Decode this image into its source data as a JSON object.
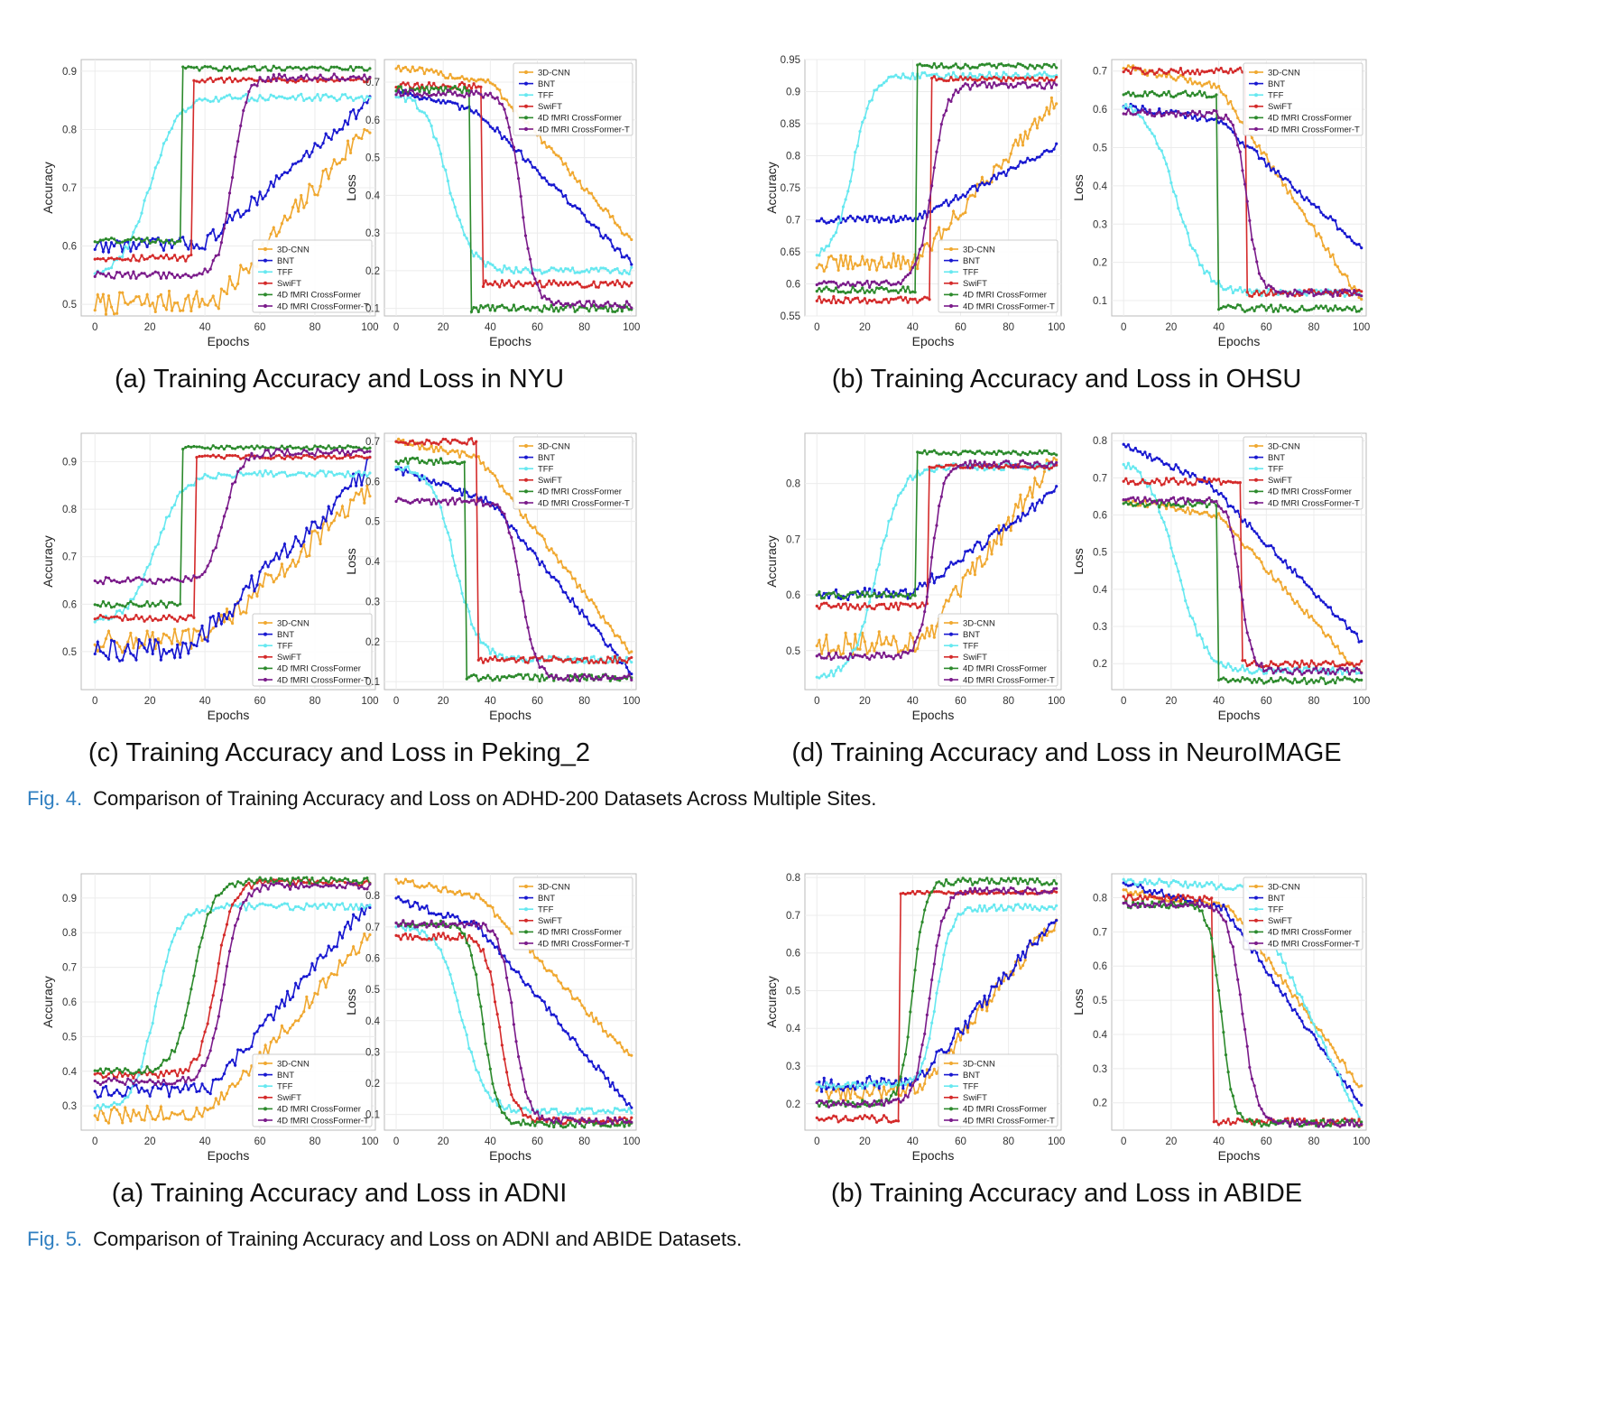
{
  "legend_labels": [
    "3D-CNN",
    "BNT",
    "TFF",
    "SwiFT",
    "4D fMRI CrossFormer",
    "4D fMRI CrossFormer-T"
  ],
  "series_colors": [
    "#f0a830",
    "#1818d0",
    "#66e8f0",
    "#d42a2a",
    "#2c8a2c",
    "#7a1a8a"
  ],
  "subcaptions": [
    {
      "id": "a1",
      "text": "(a) Training Accuracy and Loss in NYU"
    },
    {
      "id": "b1",
      "text": "(b) Training Accuracy and Loss in OHSU"
    },
    {
      "id": "c1",
      "text": "(c) Training Accuracy and Loss in Peking_2"
    },
    {
      "id": "d1",
      "text": "(d) Training Accuracy and Loss in NeuroIMAGE"
    },
    {
      "id": "a2",
      "text": "(a) Training Accuracy and Loss in ADNI"
    },
    {
      "id": "b2",
      "text": "(b) Training Accuracy and Loss in ABIDE"
    }
  ],
  "figure_captions": [
    {
      "num": "Fig. 4.",
      "text": "Comparison of Training Accuracy and Loss on ADHD-200 Datasets Across Multiple Sites."
    },
    {
      "num": "Fig. 5.",
      "text": "Comparison of Training Accuracy and Loss on ADNI and ABIDE Datasets."
    }
  ],
  "chart_data": [
    {
      "id": "nyu-acc",
      "type": "line",
      "xlabel": "Epochs",
      "ylabel": "Accuracy",
      "xlim": [
        -5,
        102
      ],
      "ylim": [
        0.48,
        0.92
      ],
      "xticks": [
        0,
        20,
        40,
        60,
        80,
        100
      ],
      "yticks": [
        0.5,
        0.6,
        0.7,
        0.8,
        0.9
      ],
      "legend": "bottom-right",
      "series": [
        {
          "name": "3D-CNN",
          "shape": "linear",
          "start": 0.5,
          "end": 0.81,
          "t": 45,
          "noise": 0.02
        },
        {
          "name": "BNT",
          "shape": "linear",
          "start": 0.6,
          "end": 0.85,
          "t": 40,
          "noise": 0.012
        },
        {
          "name": "TFF",
          "shape": "sigmoid",
          "start": 0.55,
          "end": 0.855,
          "t": 20,
          "w": 5
        },
        {
          "name": "SwiFT",
          "shape": "step",
          "start": 0.58,
          "end": 0.885,
          "t": 36
        },
        {
          "name": "4D fMRI CrossFormer",
          "shape": "step",
          "start": 0.61,
          "end": 0.905,
          "t": 32
        },
        {
          "name": "4D fMRI CrossFormer-T",
          "shape": "sigmoid",
          "start": 0.55,
          "end": 0.89,
          "t": 50,
          "w": 2.5
        }
      ]
    },
    {
      "id": "nyu-loss",
      "type": "line",
      "xlabel": "Epochs",
      "ylabel": "Loss",
      "xlim": [
        -5,
        102
      ],
      "ylim": [
        0.08,
        0.76
      ],
      "xticks": [
        0,
        20,
        40,
        60,
        80,
        100
      ],
      "yticks": [
        0.1,
        0.2,
        0.3,
        0.4,
        0.5,
        0.6,
        0.7
      ],
      "legend": "top-right",
      "series": [
        {
          "name": "3D-CNN",
          "shape": "plateau",
          "start": 0.74,
          "mid": 0.7,
          "end": 0.28,
          "t": 40
        },
        {
          "name": "BNT",
          "shape": "plateau",
          "start": 0.68,
          "mid": 0.62,
          "end": 0.22,
          "t": 35
        },
        {
          "name": "TFF",
          "shape": "sigmoid",
          "start": 0.67,
          "end": 0.2,
          "t": 22,
          "w": 5
        },
        {
          "name": "SwiFT",
          "shape": "step",
          "start": 0.69,
          "end": 0.165,
          "t": 37
        },
        {
          "name": "4D fMRI CrossFormer",
          "shape": "step",
          "start": 0.68,
          "end": 0.1,
          "t": 32
        },
        {
          "name": "4D fMRI CrossFormer-T",
          "shape": "sigmoid",
          "start": 0.67,
          "end": 0.11,
          "t": 53,
          "w": 3
        }
      ]
    },
    {
      "id": "ohsu-acc",
      "type": "line",
      "xlabel": "Epochs",
      "ylabel": "Accuracy",
      "xlim": [
        -5,
        102
      ],
      "ylim": [
        0.55,
        0.95
      ],
      "xticks": [
        0,
        20,
        40,
        60,
        80,
        100
      ],
      "yticks": [
        0.55,
        0.6,
        0.65,
        0.7,
        0.75,
        0.8,
        0.85,
        0.9,
        0.95
      ],
      "legend": "bottom-right",
      "series": [
        {
          "name": "3D-CNN",
          "shape": "linear",
          "start": 0.63,
          "end": 0.89,
          "t": 42,
          "noise": 0.015
        },
        {
          "name": "BNT",
          "shape": "linear",
          "start": 0.7,
          "end": 0.815,
          "t": 42,
          "noise": 0.006
        },
        {
          "name": "TFF",
          "shape": "sigmoid",
          "start": 0.64,
          "end": 0.925,
          "t": 15,
          "w": 4
        },
        {
          "name": "SwiFT",
          "shape": "step",
          "start": 0.575,
          "end": 0.92,
          "t": 48
        },
        {
          "name": "4D fMRI CrossFormer",
          "shape": "step",
          "start": 0.59,
          "end": 0.94,
          "t": 42
        },
        {
          "name": "4D fMRI CrossFormer-T",
          "shape": "sigmoid",
          "start": 0.6,
          "end": 0.91,
          "t": 48,
          "w": 3
        }
      ]
    },
    {
      "id": "ohsu-loss",
      "type": "line",
      "xlabel": "Epochs",
      "ylabel": "Loss",
      "xlim": [
        -5,
        102
      ],
      "ylim": [
        0.06,
        0.73
      ],
      "xticks": [
        0,
        20,
        40,
        60,
        80,
        100
      ],
      "yticks": [
        0.1,
        0.2,
        0.3,
        0.4,
        0.5,
        0.6,
        0.7
      ],
      "legend": "top-right",
      "series": [
        {
          "name": "3D-CNN",
          "shape": "plateau",
          "start": 0.71,
          "mid": 0.66,
          "end": 0.1,
          "t": 40
        },
        {
          "name": "BNT",
          "shape": "plateau",
          "start": 0.61,
          "mid": 0.57,
          "end": 0.24,
          "t": 40
        },
        {
          "name": "TFF",
          "shape": "sigmoid",
          "start": 0.62,
          "end": 0.12,
          "t": 22,
          "w": 6
        },
        {
          "name": "SwiFT",
          "shape": "step",
          "start": 0.7,
          "end": 0.12,
          "t": 52
        },
        {
          "name": "4D fMRI CrossFormer",
          "shape": "step",
          "start": 0.64,
          "end": 0.08,
          "t": 40
        },
        {
          "name": "4D fMRI CrossFormer-T",
          "shape": "sigmoid",
          "start": 0.59,
          "end": 0.12,
          "t": 52,
          "w": 2.5
        }
      ]
    },
    {
      "id": "peking-acc",
      "type": "line",
      "xlabel": "Epochs",
      "ylabel": "Accuracy",
      "xlim": [
        -5,
        102
      ],
      "ylim": [
        0.42,
        0.96
      ],
      "xticks": [
        0,
        20,
        40,
        60,
        80,
        100
      ],
      "yticks": [
        0.5,
        0.6,
        0.7,
        0.8,
        0.9
      ],
      "legend": "bottom-right",
      "series": [
        {
          "name": "3D-CNN",
          "shape": "linear",
          "start": 0.52,
          "end": 0.84,
          "t": 40,
          "noise": 0.02
        },
        {
          "name": "BNT",
          "shape": "linear",
          "start": 0.5,
          "end": 0.89,
          "t": 35,
          "noise": 0.02
        },
        {
          "name": "TFF",
          "shape": "sigmoid",
          "start": 0.56,
          "end": 0.875,
          "t": 22,
          "w": 5
        },
        {
          "name": "SwiFT",
          "shape": "step",
          "start": 0.57,
          "end": 0.91,
          "t": 37
        },
        {
          "name": "4D fMRI CrossFormer",
          "shape": "step",
          "start": 0.6,
          "end": 0.93,
          "t": 32
        },
        {
          "name": "4D fMRI CrossFormer-T",
          "shape": "sigmoid",
          "start": 0.65,
          "end": 0.92,
          "t": 47,
          "w": 3
        }
      ]
    },
    {
      "id": "peking-loss",
      "type": "line",
      "xlabel": "Epochs",
      "ylabel": "Loss",
      "xlim": [
        -5,
        102
      ],
      "ylim": [
        0.08,
        0.72
      ],
      "xticks": [
        0,
        20,
        40,
        60,
        80,
        100
      ],
      "yticks": [
        0.1,
        0.2,
        0.3,
        0.4,
        0.5,
        0.6,
        0.7
      ],
      "legend": "top-right",
      "series": [
        {
          "name": "3D-CNN",
          "shape": "plateau",
          "start": 0.7,
          "mid": 0.66,
          "end": 0.17,
          "t": 35
        },
        {
          "name": "BNT",
          "shape": "plateau",
          "start": 0.63,
          "mid": 0.55,
          "end": 0.12,
          "t": 40
        },
        {
          "name": "TFF",
          "shape": "sigmoid",
          "start": 0.64,
          "end": 0.155,
          "t": 25,
          "w": 5
        },
        {
          "name": "SwiFT",
          "shape": "step",
          "start": 0.7,
          "end": 0.155,
          "t": 35
        },
        {
          "name": "4D fMRI CrossFormer",
          "shape": "step",
          "start": 0.65,
          "end": 0.11,
          "t": 30
        },
        {
          "name": "4D fMRI CrossFormer-T",
          "shape": "sigmoid",
          "start": 0.55,
          "end": 0.11,
          "t": 53,
          "w": 3
        }
      ]
    },
    {
      "id": "neuro-acc",
      "type": "line",
      "xlabel": "Epochs",
      "ylabel": "Accuracy",
      "xlim": [
        -5,
        102
      ],
      "ylim": [
        0.43,
        0.89
      ],
      "xticks": [
        0,
        20,
        40,
        60,
        80,
        100
      ],
      "yticks": [
        0.5,
        0.6,
        0.7,
        0.8
      ],
      "legend": "bottom-right",
      "series": [
        {
          "name": "3D-CNN",
          "shape": "linear",
          "start": 0.51,
          "end": 0.85,
          "t": 45,
          "noise": 0.02
        },
        {
          "name": "BNT",
          "shape": "linear",
          "start": 0.6,
          "end": 0.785,
          "t": 40,
          "noise": 0.01
        },
        {
          "name": "TFF",
          "shape": "sigmoid",
          "start": 0.45,
          "end": 0.83,
          "t": 25,
          "w": 5
        },
        {
          "name": "SwiFT",
          "shape": "step",
          "start": 0.58,
          "end": 0.83,
          "t": 47
        },
        {
          "name": "4D fMRI CrossFormer",
          "shape": "step",
          "start": 0.6,
          "end": 0.855,
          "t": 42
        },
        {
          "name": "4D fMRI CrossFormer-T",
          "shape": "sigmoid",
          "start": 0.49,
          "end": 0.835,
          "t": 48,
          "w": 2.5
        }
      ]
    },
    {
      "id": "neuro-loss",
      "type": "line",
      "xlabel": "Epochs",
      "ylabel": "Loss",
      "xlim": [
        -5,
        102
      ],
      "ylim": [
        0.13,
        0.82
      ],
      "xticks": [
        0,
        20,
        40,
        60,
        80,
        100
      ],
      "yticks": [
        0.2,
        0.3,
        0.4,
        0.5,
        0.6,
        0.7,
        0.8
      ],
      "legend": "top-right",
      "series": [
        {
          "name": "3D-CNN",
          "shape": "plateau",
          "start": 0.64,
          "mid": 0.6,
          "end": 0.17,
          "t": 40
        },
        {
          "name": "BNT",
          "shape": "plateau",
          "start": 0.79,
          "mid": 0.69,
          "end": 0.26,
          "t": 35
        },
        {
          "name": "TFF",
          "shape": "sigmoid",
          "start": 0.75,
          "end": 0.18,
          "t": 22,
          "w": 6
        },
        {
          "name": "SwiFT",
          "shape": "step",
          "start": 0.69,
          "end": 0.2,
          "t": 50
        },
        {
          "name": "4D fMRI CrossFormer",
          "shape": "step",
          "start": 0.63,
          "end": 0.155,
          "t": 40
        },
        {
          "name": "4D fMRI CrossFormer-T",
          "shape": "sigmoid",
          "start": 0.64,
          "end": 0.18,
          "t": 49,
          "w": 2.5
        }
      ]
    },
    {
      "id": "adni-acc",
      "type": "line",
      "xlabel": "Epochs",
      "ylabel": "Accuracy",
      "xlim": [
        -5,
        102
      ],
      "ylim": [
        0.23,
        0.97
      ],
      "xticks": [
        0,
        20,
        40,
        60,
        80,
        100
      ],
      "yticks": [
        0.3,
        0.4,
        0.5,
        0.6,
        0.7,
        0.8,
        0.9
      ],
      "legend": "bottom-right",
      "series": [
        {
          "name": "3D-CNN",
          "shape": "linear",
          "start": 0.27,
          "end": 0.8,
          "t": 42,
          "noise": 0.015
        },
        {
          "name": "BNT",
          "shape": "linear",
          "start": 0.34,
          "end": 0.89,
          "t": 42,
          "noise": 0.012
        },
        {
          "name": "TFF",
          "shape": "sigmoid",
          "start": 0.29,
          "end": 0.875,
          "t": 22,
          "w": 4
        },
        {
          "name": "SwiFT",
          "shape": "sigmoid",
          "start": 0.39,
          "end": 0.945,
          "t": 44,
          "w": 3
        },
        {
          "name": "4D fMRI CrossFormer",
          "shape": "sigmoid",
          "start": 0.4,
          "end": 0.95,
          "t": 36,
          "w": 3.5
        },
        {
          "name": "4D fMRI CrossFormer-T",
          "shape": "sigmoid",
          "start": 0.37,
          "end": 0.935,
          "t": 47,
          "w": 3
        }
      ]
    },
    {
      "id": "adni-loss",
      "type": "line",
      "xlabel": "Epochs",
      "ylabel": "Loss",
      "xlim": [
        -5,
        102
      ],
      "ylim": [
        0.05,
        0.87
      ],
      "xticks": [
        0,
        20,
        40,
        60,
        80,
        100
      ],
      "yticks": [
        0.1,
        0.2,
        0.3,
        0.4,
        0.5,
        0.6,
        0.7,
        0.8
      ],
      "legend": "top-right",
      "series": [
        {
          "name": "3D-CNN",
          "shape": "plateau",
          "start": 0.85,
          "mid": 0.8,
          "end": 0.28,
          "t": 35
        },
        {
          "name": "BNT",
          "shape": "plateau",
          "start": 0.79,
          "mid": 0.7,
          "end": 0.12,
          "t": 35
        },
        {
          "name": "TFF",
          "shape": "sigmoid",
          "start": 0.7,
          "end": 0.11,
          "t": 28,
          "w": 5
        },
        {
          "name": "SwiFT",
          "shape": "sigmoid",
          "start": 0.67,
          "end": 0.08,
          "t": 44,
          "w": 3
        },
        {
          "name": "4D fMRI CrossFormer",
          "shape": "sigmoid",
          "start": 0.71,
          "end": 0.07,
          "t": 37,
          "w": 3
        },
        {
          "name": "4D fMRI CrossFormer-T",
          "shape": "sigmoid",
          "start": 0.71,
          "end": 0.08,
          "t": 50,
          "w": 3
        }
      ]
    },
    {
      "id": "abide-acc",
      "type": "line",
      "xlabel": "Epochs",
      "ylabel": "Accuracy",
      "xlim": [
        -5,
        102
      ],
      "ylim": [
        0.13,
        0.81
      ],
      "xticks": [
        0,
        20,
        40,
        60,
        80,
        100
      ],
      "yticks": [
        0.2,
        0.3,
        0.4,
        0.5,
        0.6,
        0.7,
        0.8
      ],
      "legend": "bottom-right",
      "series": [
        {
          "name": "3D-CNN",
          "shape": "linear",
          "start": 0.23,
          "end": 0.69,
          "t": 42,
          "noise": 0.015
        },
        {
          "name": "BNT",
          "shape": "linear",
          "start": 0.25,
          "end": 0.7,
          "t": 42,
          "noise": 0.012
        },
        {
          "name": "TFF",
          "shape": "sigmoid",
          "start": 0.25,
          "end": 0.72,
          "t": 50,
          "w": 3
        },
        {
          "name": "SwiFT",
          "shape": "step",
          "start": 0.16,
          "end": 0.76,
          "t": 35
        },
        {
          "name": "4D fMRI CrossFormer",
          "shape": "sigmoid",
          "start": 0.2,
          "end": 0.79,
          "t": 40,
          "w": 2.5
        },
        {
          "name": "4D fMRI CrossFormer-T",
          "shape": "sigmoid",
          "start": 0.2,
          "end": 0.765,
          "t": 47,
          "w": 3
        }
      ]
    },
    {
      "id": "abide-loss",
      "type": "line",
      "xlabel": "Epochs",
      "ylabel": "Loss",
      "xlim": [
        -5,
        102
      ],
      "ylim": [
        0.12,
        0.87
      ],
      "xticks": [
        0,
        20,
        40,
        60,
        80,
        100
      ],
      "yticks": [
        0.2,
        0.3,
        0.4,
        0.5,
        0.6,
        0.7,
        0.8
      ],
      "legend": "top-right",
      "series": [
        {
          "name": "3D-CNN",
          "shape": "plateau",
          "start": 0.82,
          "mid": 0.77,
          "end": 0.24,
          "t": 45
        },
        {
          "name": "BNT",
          "shape": "plateau",
          "start": 0.84,
          "mid": 0.77,
          "end": 0.19,
          "t": 42
        },
        {
          "name": "TFF",
          "shape": "plateau",
          "start": 0.85,
          "mid": 0.83,
          "end": 0.14,
          "t": 52
        },
        {
          "name": "SwiFT",
          "shape": "step",
          "start": 0.8,
          "end": 0.145,
          "t": 38
        },
        {
          "name": "4D fMRI CrossFormer",
          "shape": "sigmoid",
          "start": 0.78,
          "end": 0.14,
          "t": 41,
          "w": 2.5
        },
        {
          "name": "4D fMRI CrossFormer-T",
          "shape": "sigmoid",
          "start": 0.78,
          "end": 0.14,
          "t": 50,
          "w": 3
        }
      ]
    }
  ]
}
